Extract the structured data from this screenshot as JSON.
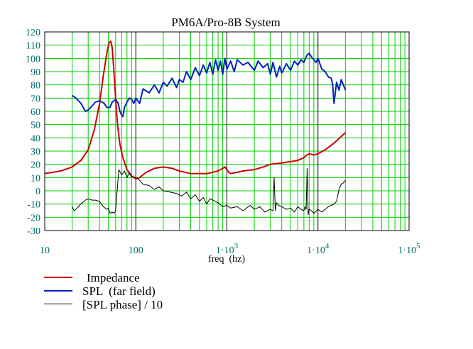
{
  "chart_data": {
    "type": "line",
    "title": "PM6A/Pro-8B System",
    "xlabel": "freq  (hz)",
    "ylabel": "",
    "x_scale": "log",
    "xlim": [
      10,
      100000
    ],
    "ylim": [
      -30,
      120
    ],
    "grid": true,
    "x_ticks": [
      {
        "value": 10,
        "label": "10"
      },
      {
        "value": 100,
        "label": "100"
      },
      {
        "value": 1000,
        "label": "1·10",
        "exp": "3"
      },
      {
        "value": 10000,
        "label": "1·10",
        "exp": "4"
      },
      {
        "value": 100000,
        "label": "1·10",
        "exp": "5"
      }
    ],
    "y_ticks": [
      "120",
      "110",
      "100",
      "90",
      "80",
      "70",
      "60",
      "50",
      "40",
      "30",
      "20",
      "10",
      "0",
      "-10",
      "-20",
      "-30"
    ],
    "legend_position": "below",
    "series": [
      {
        "name": "Impedance",
        "color": "#cc0000",
        "x": [
          10,
          15,
          20,
          25,
          30,
          35,
          40,
          44,
          48,
          51,
          53,
          55,
          57,
          60,
          63,
          67,
          72,
          80,
          90,
          100,
          110,
          130,
          160,
          200,
          250,
          300,
          400,
          500,
          600,
          700,
          800,
          900,
          950,
          1000,
          1050,
          1100,
          1300,
          1500,
          2000,
          2500,
          3000,
          4000,
          5000,
          6000,
          7000,
          7500,
          8000,
          9000,
          10000,
          12000,
          15000,
          18000,
          20000
        ],
        "values": [
          13,
          15,
          18,
          23,
          31,
          46,
          66,
          87,
          104,
          112,
          113,
          108,
          94,
          70,
          50,
          35,
          25,
          16,
          11,
          9,
          10,
          14,
          17,
          18,
          17,
          15,
          13,
          13,
          13,
          14,
          15,
          17,
          18,
          16,
          14,
          13,
          14,
          15,
          16,
          18,
          20,
          21,
          22,
          23,
          25,
          27,
          28,
          27,
          28,
          31,
          36,
          41,
          44
        ]
      },
      {
        "name": "SPL  (far field)",
        "color": "#0022bb",
        "x": [
          20,
          22,
          25,
          28,
          30,
          33,
          36,
          40,
          45,
          48,
          52,
          55,
          60,
          64,
          67,
          70,
          72,
          75,
          80,
          85,
          90,
          95,
          100,
          110,
          120,
          140,
          160,
          180,
          200,
          220,
          250,
          280,
          300,
          330,
          360,
          400,
          450,
          500,
          550,
          600,
          650,
          700,
          750,
          800,
          850,
          900,
          950,
          1000,
          1100,
          1200,
          1300,
          1500,
          1700,
          2000,
          2200,
          2500,
          2800,
          3000,
          3200,
          3500,
          3800,
          4000,
          4500,
          5000,
          5500,
          6000,
          6500,
          7000,
          7500,
          8000,
          8500,
          9000,
          9500,
          10000,
          11000,
          12000,
          13000,
          14000,
          14500,
          15000,
          16000,
          17000,
          18000,
          19000,
          20000
        ],
        "values": [
          72,
          70,
          66,
          60,
          61,
          64,
          67,
          68,
          66,
          63,
          63,
          67,
          69,
          66,
          60,
          57,
          56,
          63,
          67,
          70,
          69,
          66,
          70,
          66,
          77,
          74,
          80,
          74,
          82,
          79,
          85,
          78,
          84,
          82,
          90,
          84,
          93,
          87,
          95,
          89,
          97,
          88,
          99,
          91,
          98,
          88,
          100,
          92,
          98,
          90,
          99,
          95,
          97,
          91,
          98,
          93,
          96,
          88,
          97,
          86,
          94,
          89,
          96,
          91,
          98,
          95,
          99,
          97,
          102,
          104,
          101,
          99,
          97,
          100,
          92,
          90,
          86,
          85,
          80,
          66,
          82,
          76,
          84,
          80,
          76
        ]
      },
      {
        "name": "[SPL phase] / 10",
        "color": "#000000",
        "x": [
          20,
          21,
          22,
          24,
          26,
          28,
          30,
          33,
          36,
          40,
          44,
          48,
          50,
          52,
          55,
          58,
          60,
          65,
          70,
          75,
          80,
          85,
          90,
          100,
          110,
          120,
          140,
          160,
          180,
          200,
          240,
          280,
          320,
          360,
          400,
          450,
          500,
          550,
          600,
          650,
          700,
          800,
          900,
          1000,
          1100,
          1300,
          1500,
          1800,
          2000,
          2300,
          2600,
          3000,
          3200,
          3300,
          3400,
          3500,
          3700,
          4000,
          4500,
          5000,
          5500,
          6000,
          6500,
          7000,
          7200,
          7400,
          7600,
          7800,
          8000,
          8500,
          9000,
          10000,
          11000,
          12000,
          13000,
          14000,
          15000,
          16000,
          17000,
          18000,
          19000,
          20000
        ],
        "values": [
          -12,
          -15,
          -14,
          -11,
          -9,
          -7,
          -6,
          -7,
          -7,
          -8,
          -12,
          -14,
          -13,
          -17,
          -16,
          -17,
          -15,
          16,
          12,
          15,
          10,
          14,
          11,
          10,
          8,
          5,
          4,
          1,
          3,
          0,
          -1,
          -2,
          -4,
          -1,
          -6,
          -3,
          -8,
          -5,
          -10,
          -6,
          -7,
          -9,
          -12,
          -11,
          -13,
          -12,
          -15,
          -11,
          -14,
          -12,
          -16,
          -14,
          -15,
          10,
          -15,
          -9,
          -11,
          -12,
          -14,
          -13,
          -16,
          -12,
          -14,
          -15,
          -12,
          -14,
          17,
          -18,
          -14,
          -15,
          -17,
          -14,
          -16,
          -14,
          -12,
          -11,
          -10,
          -8,
          1,
          5,
          6,
          8
        ]
      }
    ]
  }
}
